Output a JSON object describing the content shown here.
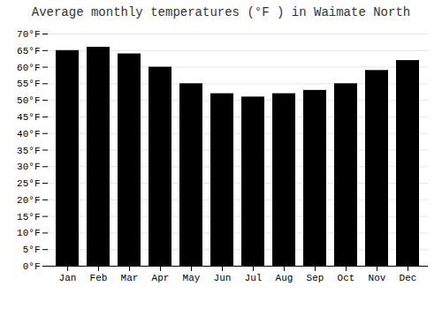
{
  "chart_data": {
    "type": "bar",
    "title": "Average monthly temperatures (°F ) in Waimate North",
    "categories": [
      "Jan",
      "Feb",
      "Mar",
      "Apr",
      "May",
      "Jun",
      "Jul",
      "Aug",
      "Sep",
      "Oct",
      "Nov",
      "Dec"
    ],
    "values": [
      65,
      66,
      64,
      60,
      55,
      52,
      51,
      52,
      53,
      55,
      59,
      62
    ],
    "ylim": [
      0,
      70
    ],
    "yticks": [
      {
        "value": 0,
        "label": "0°F"
      },
      {
        "value": 5,
        "label": "5°F"
      },
      {
        "value": 10,
        "label": "10°F"
      },
      {
        "value": 15,
        "label": "15°F"
      },
      {
        "value": 20,
        "label": "20°F"
      },
      {
        "value": 25,
        "label": "25°F"
      },
      {
        "value": 30,
        "label": "30°F"
      },
      {
        "value": 35,
        "label": "35°F"
      },
      {
        "value": 40,
        "label": "40°F"
      },
      {
        "value": 45,
        "label": "45°F"
      },
      {
        "value": 50,
        "label": "50°F"
      },
      {
        "value": 55,
        "label": "55°F"
      },
      {
        "value": 60,
        "label": "60°F"
      },
      {
        "value": 65,
        "label": "65°F"
      },
      {
        "value": 70,
        "label": "70°F"
      }
    ],
    "grid": true
  }
}
